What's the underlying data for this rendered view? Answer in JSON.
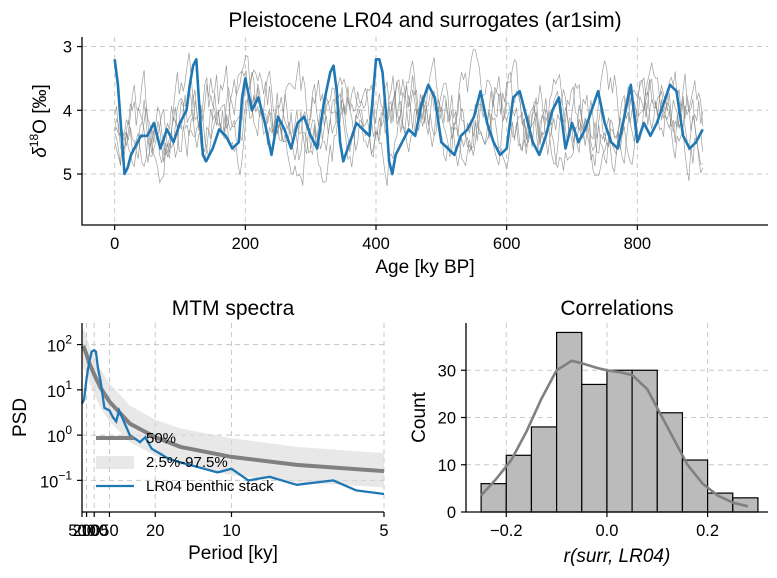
{
  "figure": {
    "charts": [
      {
        "id": "timeseries",
        "type": "line",
        "title": "Pleistocene LR04 and surrogates (ar1sim)",
        "xlabel": "Age [ky BP]",
        "ylabel": "δ18O [‰]",
        "ylabel_base": "δ",
        "ylabel_sup": "18",
        "ylabel_rest": "O [‰]",
        "xlim": [
          -50,
          1000
        ],
        "ylim": [
          5.8,
          2.85
        ],
        "y_inverted": true,
        "xticks": [
          0,
          200,
          400,
          600,
          800
        ],
        "yticks": [
          3,
          4,
          5
        ],
        "grid": true,
        "colors": {
          "main": "#1f77b4",
          "surrogates": "#7f7f7f"
        },
        "series": [
          {
            "name": "LR04",
            "x": [
              0,
              5,
              10,
              15,
              20,
              25,
              30,
              40,
              50,
              60,
              70,
              80,
              90,
              100,
              110,
              115,
              120,
              125,
              130,
              135,
              140,
              150,
              160,
              170,
              180,
              190,
              195,
              200,
              210,
              220,
              230,
              240,
              250,
              260,
              270,
              280,
              290,
              300,
              310,
              320,
              330,
              335,
              340,
              345,
              350,
              360,
              370,
              380,
              390,
              400,
              405,
              410,
              415,
              420,
              425,
              430,
              440,
              450,
              460,
              470,
              480,
              490,
              500,
              510,
              520,
              530,
              540,
              550,
              560,
              570,
              580,
              590,
              600,
              610,
              620,
              630,
              640,
              650,
              660,
              670,
              680,
              690,
              700,
              710,
              720,
              730,
              740,
              750,
              760,
              770,
              780,
              790,
              800,
              810,
              820,
              830,
              840,
              850,
              860,
              870,
              880,
              890,
              900
            ],
            "y": [
              3.2,
              3.6,
              4.3,
              5.0,
              4.9,
              4.7,
              4.6,
              4.4,
              4.4,
              4.2,
              4.6,
              4.3,
              4.5,
              4.2,
              4.0,
              3.6,
              3.3,
              3.2,
              4.0,
              4.7,
              4.8,
              4.6,
              4.3,
              4.4,
              4.6,
              4.5,
              3.8,
              3.5,
              4.0,
              3.8,
              4.2,
              4.7,
              4.1,
              4.3,
              4.6,
              4.2,
              4.1,
              4.4,
              4.6,
              3.9,
              3.4,
              3.3,
              3.7,
              4.5,
              4.8,
              4.5,
              4.2,
              4.3,
              4.4,
              3.2,
              3.2,
              3.4,
              4.0,
              4.8,
              5.0,
              4.7,
              4.5,
              4.3,
              4.4,
              3.9,
              3.6,
              3.8,
              4.5,
              4.6,
              4.7,
              4.4,
              4.3,
              4.1,
              3.7,
              4.2,
              4.5,
              4.7,
              4.6,
              3.8,
              3.7,
              4.1,
              4.5,
              4.7,
              4.4,
              4.0,
              3.8,
              4.6,
              4.2,
              4.5,
              4.3,
              4.0,
              3.7,
              4.2,
              4.5,
              4.6,
              4.1,
              3.6,
              4.5,
              4.2,
              4.4,
              4.2,
              3.9,
              3.6,
              3.7,
              4.4,
              4.6,
              4.5,
              4.3
            ]
          }
        ],
        "surrogate_count": 5
      },
      {
        "id": "spectra",
        "type": "line",
        "title": "MTM spectra",
        "xlabel": "Period [ky]",
        "ylabel": "PSD",
        "x_scale": "reciprocal",
        "y_scale": "log",
        "xlim_period": [
          500,
          5
        ],
        "ylim": [
          0.02,
          300
        ],
        "xtick_labels": [
          "500",
          "200",
          "100",
          "50",
          "20",
          "10",
          "5"
        ],
        "xtick_values": [
          500,
          200,
          100,
          50,
          20,
          10,
          5
        ],
        "ytick_exponents": [
          2,
          1,
          0,
          -1
        ],
        "ytick_base": "10",
        "grid": true,
        "legend_position": "lower-left",
        "legend": [
          "50%",
          "2.5%-97.5%",
          "LR04 benthic stack"
        ],
        "colors": {
          "median": "#808080",
          "band": "#d9d9d9",
          "lr04": "#1f77b4"
        },
        "series": [
          {
            "name": "50%",
            "period": [
              500,
              300,
              200,
              150,
              100,
              70,
              50,
              30,
              20,
              15,
              10,
              7,
              5
            ],
            "psd": [
              80,
              85,
              60,
              40,
              22,
              11,
              5.5,
              1.8,
              0.9,
              0.55,
              0.33,
              0.22,
              0.16
            ]
          },
          {
            "name": "2.5%-97.5%",
            "period": [
              500,
              300,
              200,
              150,
              100,
              70,
              50,
              30,
              20,
              15,
              10,
              7,
              5
            ],
            "low": [
              30,
              30,
              22,
              15,
              8,
              4,
              2,
              0.7,
              0.35,
              0.22,
              0.13,
              0.09,
              0.07
            ],
            "high": [
              200,
              210,
              150,
              100,
              55,
              28,
              14,
              4.5,
              2.2,
              1.4,
              0.85,
              0.55,
              0.4
            ]
          },
          {
            "name": "LR04 benthic stack",
            "period": [
              500,
              300,
              200,
              150,
              120,
              100,
              90,
              80,
              70,
              60,
              50,
              45,
              41,
              38,
              30,
              25,
              23,
              21,
              19,
              17,
              15,
              13,
              11,
              10,
              9,
              8,
              7,
              6,
              5.5,
              5
            ],
            "psd": [
              5,
              6,
              18,
              40,
              70,
              75,
              70,
              30,
              15,
              4,
              3.5,
              2.5,
              2,
              3.5,
              1,
              0.7,
              0.9,
              0.5,
              0.4,
              0.3,
              0.25,
              0.2,
              0.15,
              0.18,
              0.1,
              0.12,
              0.08,
              0.1,
              0.06,
              0.05
            ]
          }
        ]
      },
      {
        "id": "correlations",
        "type": "bar",
        "title": "Correlations",
        "xlabel": "r(surr, LR04)",
        "ylabel": "Count",
        "xlim": [
          -0.28,
          0.32
        ],
        "ylim": [
          0,
          40
        ],
        "xtick_labels": [
          "−0.2",
          "0.0",
          "0.2"
        ],
        "xtick_values": [
          -0.2,
          0.0,
          0.2
        ],
        "yticks": [
          0,
          10,
          20,
          30
        ],
        "grid": true,
        "colors": {
          "bar": "#bbbbbb",
          "kde": "#808080"
        },
        "bins": [
          -0.25,
          -0.2,
          -0.15,
          -0.1,
          -0.05,
          0.0,
          0.05,
          0.1,
          0.15,
          0.2,
          0.25,
          0.3
        ],
        "counts": [
          6,
          12,
          18,
          38,
          27,
          30,
          30,
          21,
          11,
          4,
          3
        ],
        "kde": {
          "x": [
            -0.25,
            -0.22,
            -0.19,
            -0.16,
            -0.13,
            -0.1,
            -0.07,
            -0.05,
            -0.02,
            0.0,
            0.03,
            0.05,
            0.08,
            0.1,
            0.13,
            0.16,
            0.19,
            0.22,
            0.25,
            0.28
          ],
          "y": [
            3.5,
            7,
            11,
            17,
            24,
            30,
            32,
            31.5,
            30.5,
            30,
            29.5,
            29,
            26,
            22,
            16,
            10,
            6,
            3.5,
            2,
            1.2
          ]
        }
      }
    ]
  }
}
